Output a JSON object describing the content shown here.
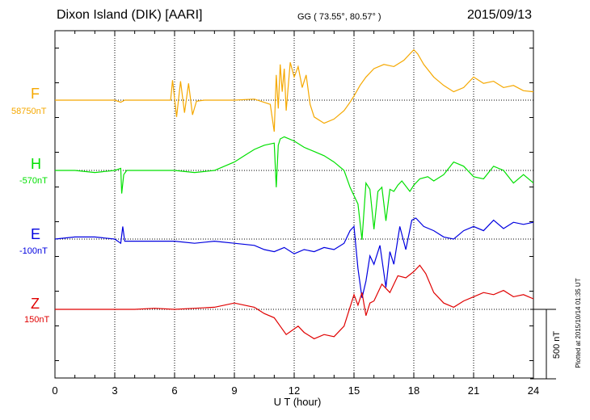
{
  "header": {
    "station": "Dixon Island (DIK)  [AARI]",
    "coords": "GG ( 73.55°,  80.57° )",
    "date": "2015/09/13"
  },
  "plotted_note": "Plotted at 2015/10/14 01:35 UT",
  "scale_bar": {
    "label": "500 nT",
    "nT": 500
  },
  "chart_data": {
    "type": "line",
    "title": "Dixon Island (DIK)  [AARI]",
    "xlabel": "U T (hour)",
    "ylabel": "",
    "xlim": [
      0,
      24
    ],
    "xticks": [
      0,
      3,
      6,
      9,
      12,
      15,
      18,
      21,
      24
    ],
    "xtick_labels": [
      "0",
      "3",
      "6",
      "9",
      "12",
      "15",
      "18",
      "21",
      "24"
    ],
    "grid": true,
    "units": "nT",
    "series": [
      {
        "name": "F",
        "baseline": "58750nT",
        "color": "#f5a800",
        "baseline_value": 58750,
        "x": [
          0,
          1,
          2,
          3,
          3.3,
          3.5,
          4,
          5,
          5.8,
          5.9,
          6.1,
          6.3,
          6.5,
          6.7,
          6.9,
          7.1,
          7.5,
          8,
          9,
          10,
          10.8,
          11.0,
          11.1,
          11.2,
          11.3,
          11.4,
          11.5,
          11.6,
          11.8,
          12.0,
          12.2,
          12.4,
          12.6,
          12.8,
          13.0,
          13.5,
          14,
          14.5,
          14.8,
          15.0,
          15.3,
          15.6,
          16,
          16.5,
          17,
          17.5,
          18,
          18.2,
          18.5,
          19,
          19.5,
          20,
          20.5,
          21,
          21.5,
          22,
          22.5,
          23,
          23.5,
          24
        ],
        "y": [
          0,
          0,
          0,
          0,
          -10,
          0,
          0,
          0,
          0,
          95,
          -80,
          90,
          -60,
          80,
          -70,
          -5,
          0,
          0,
          0,
          5,
          -20,
          -150,
          120,
          -40,
          170,
          40,
          150,
          -50,
          180,
          110,
          160,
          60,
          120,
          -20,
          -80,
          -110,
          -90,
          -50,
          -10,
          20,
          70,
          110,
          150,
          170,
          160,
          190,
          240,
          220,
          170,
          110,
          70,
          40,
          60,
          110,
          80,
          90,
          60,
          70,
          45,
          40
        ]
      },
      {
        "name": "H",
        "baseline": "-570nT",
        "color": "#00e000",
        "baseline_value": -570,
        "x": [
          0,
          1,
          2,
          3,
          3.3,
          3.35,
          3.45,
          3.6,
          4,
          5,
          6,
          7,
          8,
          9,
          9.5,
          10,
          10.5,
          11,
          11.1,
          11.2,
          11.3,
          11.5,
          12,
          12.5,
          13,
          13.5,
          14,
          14.5,
          14.8,
          15,
          15.2,
          15.4,
          15.6,
          15.8,
          16.0,
          16.2,
          16.4,
          16.6,
          16.8,
          17.0,
          17.2,
          17.4,
          17.8,
          18,
          18.3,
          18.7,
          19,
          19.5,
          20,
          20.5,
          21,
          21.5,
          22,
          22.5,
          23,
          23.5,
          24
        ],
        "y": [
          0,
          0,
          -10,
          0,
          10,
          -110,
          -20,
          0,
          0,
          0,
          0,
          -10,
          0,
          40,
          70,
          100,
          120,
          130,
          -80,
          120,
          150,
          160,
          140,
          110,
          90,
          70,
          40,
          0,
          -80,
          -120,
          -160,
          -330,
          -60,
          -90,
          -280,
          -100,
          -80,
          -240,
          -90,
          -100,
          -70,
          -50,
          -100,
          -70,
          -40,
          -30,
          -50,
          -20,
          40,
          20,
          -30,
          -40,
          20,
          0,
          -60,
          -20,
          -60
        ]
      },
      {
        "name": "E",
        "baseline": "-100nT",
        "color": "#0000e0",
        "baseline_value": -100,
        "x": [
          0,
          1,
          2,
          3,
          3.3,
          3.4,
          3.5,
          4,
          5,
          6,
          7,
          8,
          9,
          10,
          10.5,
          11,
          11.5,
          12,
          12.5,
          13,
          13.5,
          14,
          14.5,
          14.8,
          15.0,
          15.2,
          15.4,
          15.6,
          15.8,
          16.0,
          16.3,
          16.6,
          16.8,
          17.0,
          17.3,
          17.6,
          17.9,
          18.1,
          18.5,
          19,
          19.5,
          20,
          20.5,
          21,
          21.5,
          22,
          22.5,
          23,
          23.5,
          24
        ],
        "y": [
          0,
          10,
          10,
          0,
          -20,
          60,
          -10,
          -10,
          -10,
          -10,
          -20,
          -10,
          -20,
          -30,
          -50,
          -60,
          -40,
          -70,
          -50,
          -60,
          -40,
          -50,
          -20,
          40,
          60,
          -140,
          -280,
          -200,
          -80,
          -120,
          -30,
          -230,
          -60,
          -120,
          60,
          -50,
          90,
          100,
          60,
          40,
          10,
          0,
          40,
          60,
          40,
          90,
          50,
          80,
          70,
          80
        ]
      },
      {
        "name": "Z",
        "baseline": "150nT",
        "color": "#e00000",
        "baseline_value": 150,
        "x": [
          0,
          1,
          2,
          3,
          4,
          5,
          6,
          7,
          8,
          9,
          9.5,
          10,
          10.5,
          11,
          11.3,
          11.6,
          11.9,
          12.2,
          12.5,
          13,
          13.5,
          14,
          14.5,
          15,
          15.2,
          15.4,
          15.6,
          15.8,
          16.0,
          16.4,
          16.8,
          17.2,
          17.6,
          18,
          18.3,
          18.6,
          19,
          19.5,
          20,
          20.5,
          21,
          21.5,
          22,
          22.5,
          23,
          23.5,
          24
        ],
        "y": [
          0,
          0,
          0,
          0,
          0,
          5,
          0,
          5,
          10,
          30,
          20,
          10,
          -20,
          -40,
          -80,
          -120,
          -100,
          -80,
          -110,
          -140,
          -120,
          -130,
          -80,
          70,
          20,
          80,
          -30,
          30,
          40,
          120,
          80,
          160,
          150,
          180,
          210,
          170,
          80,
          30,
          10,
          40,
          60,
          80,
          70,
          90,
          60,
          70,
          50
        ]
      }
    ]
  }
}
